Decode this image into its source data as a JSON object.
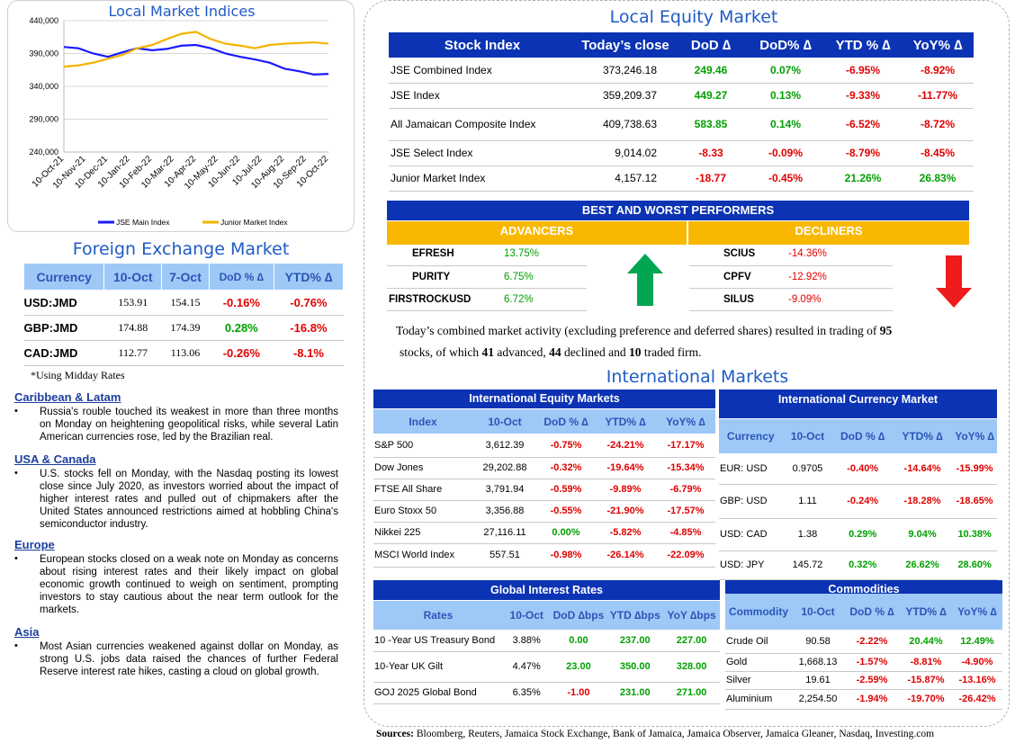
{
  "chart": {
    "title": "Local Market Indices",
    "legend": [
      "JSE Main Index",
      "Junior Market Index"
    ]
  },
  "chart_data": {
    "type": "line",
    "title": "Local Market Indices",
    "y_ticks": [
      "440,000",
      "390,000",
      "340,000",
      "290,000",
      "240,000"
    ],
    "ylim": [
      240000,
      440000
    ],
    "x_ticks": [
      "10-Oct-21",
      "10-Nov-21",
      "10-Dec-21",
      "10-Jan-22",
      "10-Feb-22",
      "10-Mar-22",
      "10-Apr-22",
      "10-May-22",
      "10-Jun-22",
      "10-Jul-22",
      "10-Aug-22",
      "10-Sep-22",
      "10-Oct-22"
    ],
    "series": [
      {
        "name": "JSE Main Index",
        "color": "#1a1aff",
        "values": [
          400000,
          398000,
          390000,
          385000,
          392000,
          398000,
          395000,
          397000,
          402000,
          403000,
          398000,
          390000,
          385000,
          381000,
          376000,
          367000,
          363000,
          358000,
          359000
        ]
      },
      {
        "name": "Junior Market Index",
        "color": "#f2b400",
        "values": [
          370000,
          372000,
          376000,
          382000,
          388000,
          398000,
          403000,
          412000,
          420000,
          423000,
          412000,
          405000,
          402000,
          398000,
          403000,
          405000,
          406000,
          407000,
          405000
        ]
      }
    ]
  },
  "equity": {
    "title": "Local Equity Market",
    "headers": [
      "Stock Index",
      "Today’s close",
      "DoD  ∆",
      "DoD% ∆",
      "YTD % ∆",
      "YoY% ∆"
    ],
    "rows": [
      {
        "name": "JSE Combined Index",
        "close": "373,246.18",
        "dod": "249.46",
        "dodp": "0.07%",
        "ytd": "-6.95%",
        "yoy": "-8.92%"
      },
      {
        "name": "JSE Index",
        "close": "359,209.37",
        "dod": "449.27",
        "dodp": "0.13%",
        "ytd": "-9.33%",
        "yoy": "-11.77%"
      },
      {
        "name": "All Jamaican Composite Index",
        "close": "409,738.63",
        "dod": "583.85",
        "dodp": "0.14%",
        "ytd": "-6.52%",
        "yoy": "-8.72%"
      },
      {
        "name": "JSE Select Index",
        "close": "9,014.02",
        "dod": "-8.33",
        "dodp": "-0.09%",
        "ytd": "-8.79%",
        "yoy": "-8.45%"
      },
      {
        "name": "Junior Market Index",
        "close": "4,157.12",
        "dod": "-18.77",
        "dodp": "-0.45%",
        "ytd": "21.26%",
        "yoy": "26.83%"
      }
    ]
  },
  "performers": {
    "title": "BEST AND WORST PERFORMERS",
    "advancers_label": "ADVANCERS",
    "decliners_label": "DECLINERS",
    "advancers": [
      {
        "name": "EFRESH",
        "pct": "13.75%"
      },
      {
        "name": "PURITY",
        "pct": "6.75%"
      },
      {
        "name": "FIRSTROCKUSD",
        "pct": "6.72%"
      }
    ],
    "decliners": [
      {
        "name": "SCIUS",
        "pct": "-14.36%"
      },
      {
        "name": "CPFV",
        "pct": "-12.92%"
      },
      {
        "name": "SILUS",
        "pct": "-9.09%"
      }
    ]
  },
  "summary": {
    "p1": "Today’s combined market activity (excluding preference and deferred shares) resulted in trading of ",
    "n_total": "95",
    "p2": "stocks, of which ",
    "n_adv": "41",
    "p3": " advanced, ",
    "n_dec": "44",
    "p4": " declined and ",
    "n_firm": "10",
    "p5": " traded firm."
  },
  "intl_title": "International Markets",
  "intl_equity": {
    "title": "International Equity Markets",
    "headers": [
      "Index",
      "10-Oct",
      "DoD % ∆",
      "YTD% ∆",
      "YoY% ∆"
    ],
    "rows": [
      {
        "name": "S&P 500",
        "val": "3,612.39",
        "dod": "-0.75%",
        "ytd": "-24.21%",
        "yoy": "-17.17%"
      },
      {
        "name": "Dow Jones",
        "val": "29,202.88",
        "dod": "-0.32%",
        "ytd": "-19.64%",
        "yoy": "-15.34%"
      },
      {
        "name": "FTSE All Share",
        "val": "3,791.94",
        "dod": "-0.59%",
        "ytd": "-9.89%",
        "yoy": "-6.79%"
      },
      {
        "name": "Euro Stoxx 50",
        "val": "3,356.88",
        "dod": "-0.55%",
        "ytd": "-21.90%",
        "yoy": "-17.57%"
      },
      {
        "name": "Nikkei 225",
        "val": "27,116.11",
        "dod": "0.00%",
        "ytd": "-5.82%",
        "yoy": "-4.85%"
      },
      {
        "name": "MSCI World Index",
        "val": "557.51",
        "dod": "-0.98%",
        "ytd": "-26.14%",
        "yoy": "-22.09%"
      }
    ]
  },
  "intl_currency": {
    "title": "International Currency Market",
    "headers": [
      "Currency",
      "10-Oct",
      "DoD % ∆",
      "YTD% ∆",
      "YoY% ∆"
    ],
    "rows": [
      {
        "name": "EUR: USD",
        "val": "0.9705",
        "dod": "-0.40%",
        "ytd": "-14.64%",
        "yoy": "-15.99%"
      },
      {
        "name": "GBP: USD",
        "val": "1.11",
        "dod": "-0.24%",
        "ytd": "-18.28%",
        "yoy": "-18.65%"
      },
      {
        "name": "USD: CAD",
        "val": "1.38",
        "dod": "0.29%",
        "ytd": "9.04%",
        "yoy": "10.38%"
      },
      {
        "name": "USD: JPY",
        "val": "145.72",
        "dod": "0.32%",
        "ytd": "26.62%",
        "yoy": "28.60%"
      }
    ]
  },
  "rates": {
    "title": "Global Interest Rates",
    "headers": [
      "Rates",
      "10-Oct",
      "DoD ∆bps",
      "YTD ∆bps",
      "YoY ∆bps"
    ],
    "rows": [
      {
        "name": "10 -Year US Treasury Bond",
        "val": "3.88%",
        "dod": "0.00",
        "ytd": "237.00",
        "yoy": "227.00"
      },
      {
        "name": "10-Year UK Gilt",
        "val": "4.47%",
        "dod": "23.00",
        "ytd": "350.00",
        "yoy": "328.00"
      },
      {
        "name": "GOJ 2025 Global Bond",
        "val": "6.35%",
        "dod": "-1.00",
        "ytd": "231.00",
        "yoy": "271.00"
      }
    ]
  },
  "commodities": {
    "title": "Commodities",
    "headers": [
      "Commodity",
      "10-Oct",
      "DoD % ∆",
      "YTD% ∆",
      "YoY% ∆"
    ],
    "rows": [
      {
        "name": "Crude Oil",
        "val": "90.58",
        "dod": "-2.22%",
        "ytd": "20.44%",
        "yoy": "12.49%"
      },
      {
        "name": "Gold",
        "val": "1,668.13",
        "dod": "-1.57%",
        "ytd": "-8.81%",
        "yoy": "-4.90%"
      },
      {
        "name": "Silver",
        "val": "19.61",
        "dod": "-2.59%",
        "ytd": "-15.87%",
        "yoy": "-13.16%"
      },
      {
        "name": "Aluminium",
        "val": "2,254.50",
        "dod": "-1.94%",
        "ytd": "-19.70%",
        "yoy": "-26.42%"
      }
    ]
  },
  "fx": {
    "title": "Foreign Exchange Market",
    "headers": [
      "Currency",
      "10-Oct",
      "7-Oct",
      "DoD % ∆",
      "YTD% ∆"
    ],
    "rows": [
      {
        "name": "USD:JMD",
        "a": "153.91",
        "b": "154.15",
        "dod": "-0.16%",
        "ytd": "-0.76%"
      },
      {
        "name": "GBP:JMD",
        "a": "174.88",
        "b": "174.39",
        "dod": "0.28%",
        "ytd": "-16.8%"
      },
      {
        "name": "CAD:JMD",
        "a": "112.77",
        "b": "113.06",
        "dod": "-0.26%",
        "ytd": "-8.1%"
      }
    ],
    "note": "*Using Midday Rates"
  },
  "news": [
    {
      "head": "Caribbean & Latam",
      "body": "Russia's rouble touched its weakest in more than three months on Monday on heightening geopolitical risks, while several Latin American currencies rose, led by the Brazilian real."
    },
    {
      "head": "USA & Canada",
      "body": "U.S. stocks fell on Monday, with the Nasdaq posting its lowest close since July 2020, as investors worried about the impact of higher interest rates and pulled out of chipmakers after the United States announced restrictions aimed at hobbling China's semiconductor industry."
    },
    {
      "head": "Europe",
      "body": "European stocks closed on a weak note on Monday as concerns about rising interest rates and their likely impact on global economic growth continued to weigh on sentiment, prompting investors to stay cautious about the near term outlook for the markets."
    },
    {
      "head": "Asia",
      "body": "Most Asian currencies weakened against dollar on Monday, as strong U.S. jobs data raised the chances of further Federal Reserve interest rate hikes, casting a cloud on global growth."
    }
  ],
  "sources": {
    "label": "Sources:",
    "text": " Bloomberg, Reuters, Jamaica Stock Exchange, Bank of Jamaica, Jamaica Observer, Jamaica Gleaner, Nasdaq, Investing.com"
  }
}
